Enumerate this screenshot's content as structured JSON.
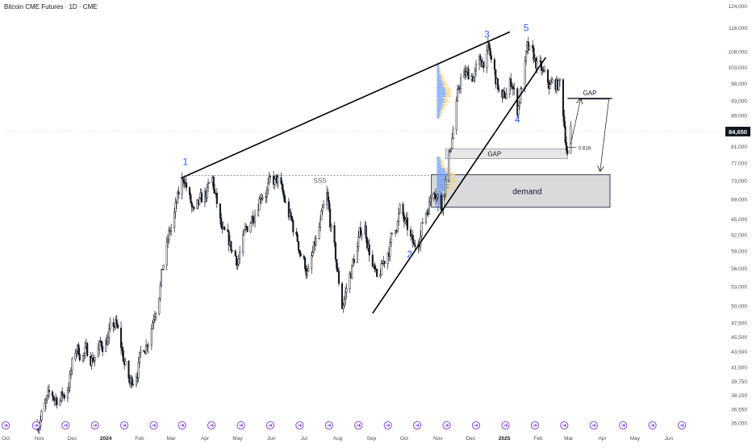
{
  "header": {
    "title": "Bitcoin CME Futures · 1D · CME"
  },
  "colors": {
    "candle": "#131722",
    "trend_line": "#000000",
    "wave_label": "#2962ff",
    "zone_fill": "#d9dadc",
    "zone_stroke": "#131722",
    "price_tag_bg": "#131722",
    "price_tag_text": "#ffffff",
    "event_icon": "#7e3ad6",
    "axis_text": "#4a4e58",
    "vp_blue": "#5b8ff0",
    "vp_yellow": "#f3d27a"
  },
  "chart_data": {
    "type": "candlestick",
    "y_scale": "log",
    "ylim": [
      34500,
      125500
    ],
    "x_domain": [
      "2023-10-01",
      "2024-06-30"
    ],
    "y_ticks": [
      124000,
      116000,
      108000,
      103000,
      98000,
      93000,
      89000,
      85000,
      81000,
      77000,
      73000,
      69000,
      65000,
      62000,
      59000,
      56000,
      53000,
      50000,
      47500,
      45500,
      43500,
      41500,
      39750,
      38150,
      36550,
      35050
    ],
    "x_ticks": [
      {
        "label": "Oct",
        "date": "2023-10-01"
      },
      {
        "label": "Nov",
        "date": "2023-11-01"
      },
      {
        "label": "Dec",
        "date": "2023-12-01"
      },
      {
        "label": "2024",
        "date": "2024-01-01"
      },
      {
        "label": "Feb",
        "date": "2024-02-01"
      },
      {
        "label": "Mar",
        "date": "2024-03-01"
      },
      {
        "label": "Apr",
        "date": "2024-04-01"
      },
      {
        "label": "May",
        "date": "2024-05-01"
      },
      {
        "label": "Jun",
        "date": "2024-06-01"
      },
      {
        "label": "Jul",
        "date": "2024-07-01"
      },
      {
        "label": "Aug",
        "date": "2024-08-01"
      },
      {
        "label": "Sep",
        "date": "2024-09-01"
      },
      {
        "label": "Oct",
        "date": "2024-10-01"
      },
      {
        "label": "Nov",
        "date": "2024-11-01"
      },
      {
        "label": "Dec",
        "date": "2024-12-01"
      },
      {
        "label": "2025",
        "date": "2025-01-01"
      },
      {
        "label": "Feb",
        "date": "2025-02-01"
      },
      {
        "label": "Mar",
        "date": "2025-03-01"
      },
      {
        "label": "Apr",
        "date": "2025-04-01"
      },
      {
        "label": "May",
        "date": "2025-05-01"
      },
      {
        "label": "Jun",
        "date": "2025-06-01"
      }
    ],
    "price_path": [
      [
        "2023-10-28",
        34800
      ],
      [
        "2023-11-10",
        37500
      ],
      [
        "2023-11-25",
        38200
      ],
      [
        "2023-12-05",
        43800
      ],
      [
        "2023-12-20",
        42800
      ],
      [
        "2024-01-10",
        47000
      ],
      [
        "2024-01-23",
        39200
      ],
      [
        "2024-02-10",
        46000
      ],
      [
        "2024-02-28",
        61500
      ],
      [
        "2024-03-13",
        74000
      ],
      [
        "2024-03-22",
        65000
      ],
      [
        "2024-04-08",
        72500
      ],
      [
        "2024-04-17",
        61500
      ],
      [
        "2024-05-01",
        57500
      ],
      [
        "2024-05-22",
        71000
      ],
      [
        "2024-06-07",
        72500
      ],
      [
        "2024-07-05",
        55000
      ],
      [
        "2024-07-22",
        68500
      ],
      [
        "2024-08-05",
        50000
      ],
      [
        "2024-08-25",
        64500
      ],
      [
        "2024-09-06",
        53000
      ],
      [
        "2024-09-27",
        66500
      ],
      [
        "2024-10-10",
        59000
      ],
      [
        "2024-10-29",
        72500
      ],
      [
        "2024-11-04",
        67500
      ],
      [
        "2024-11-22",
        99500
      ],
      [
        "2024-12-05",
        101000
      ],
      [
        "2024-12-17",
        108000
      ],
      [
        "2024-12-30",
        92000
      ],
      [
        "2025-01-08",
        99000
      ],
      [
        "2025-01-13",
        90500
      ],
      [
        "2025-01-22",
        107500
      ],
      [
        "2025-02-01",
        103000
      ],
      [
        "2025-02-10",
        97000
      ],
      [
        "2025-02-21",
        97500
      ],
      [
        "2025-02-28",
        79500
      ],
      [
        "2025-03-03",
        84650
      ]
    ],
    "volume_profiles": [
      {
        "date": "2024-10-31",
        "price_from": 88000,
        "price_to": 104000
      },
      {
        "date": "2024-10-31",
        "price_from": 66500,
        "price_to": 78500
      }
    ],
    "last_price": 84650,
    "last_price_label": "84,650",
    "trendlines": [
      {
        "name": "upper-wedge-line",
        "from": [
          "2024-03-10",
          73500
        ],
        "to": [
          "2025-01-06",
          114500
        ]
      },
      {
        "name": "lower-wedge-line",
        "from": [
          "2024-09-02",
          48800
        ],
        "to": [
          "2025-02-08",
          106000
        ]
      }
    ],
    "wave_labels": [
      {
        "text": "1",
        "date": "2024-03-14",
        "price": 76500
      },
      {
        "text": "2",
        "date": "2024-10-06",
        "price": 57800
      },
      {
        "text": "3",
        "date": "2024-12-16",
        "price": 112500
      },
      {
        "text": "4",
        "date": "2025-01-13",
        "price": 87000
      },
      {
        "text": "5",
        "date": "2025-01-21",
        "price": 114800
      }
    ],
    "sss_line": {
      "text": "SSS",
      "price": 74100,
      "from": "2024-03-14",
      "to": "2024-10-25"
    },
    "demand_zone": {
      "text": "demand",
      "price_top": 74300,
      "price_bottom": 67300,
      "from": "2024-10-26",
      "to": "2025-04-08"
    },
    "lower_gap": {
      "text": "GAP",
      "price_top": 80300,
      "price_bottom": 78000,
      "from": "2024-11-08",
      "to": "2025-02-28"
    },
    "upper_gap": {
      "text": "GAP",
      "price": 93600,
      "from": "2025-02-28",
      "to": "2025-04-10"
    },
    "fib_marker": {
      "text": "0.618",
      "price": 80700,
      "from": "2025-02-28",
      "to": "2025-03-08"
    },
    "projection_paths": [
      {
        "name": "projection-to-lower-gap",
        "points": [
          [
            "2025-03-03",
            81500
          ],
          [
            "2025-03-12",
            93400
          ]
        ]
      },
      {
        "name": "projection-to-upper-gap",
        "points": [
          [
            "2025-03-10",
            93400
          ],
          [
            "2025-04-07",
            93400
          ],
          [
            "2025-03-30",
            75200
          ]
        ]
      }
    ],
    "event_icon_dates": [
      "2023-10-01",
      "2023-10-29",
      "2023-11-25",
      "2023-12-22",
      "2024-01-18",
      "2024-02-14",
      "2024-03-11",
      "2024-04-07",
      "2024-05-04",
      "2024-05-31",
      "2024-06-27",
      "2024-07-24",
      "2024-08-20",
      "2024-09-16",
      "2024-10-13",
      "2024-11-09",
      "2024-12-06",
      "2025-01-02",
      "2025-01-29",
      "2025-02-25",
      "2025-03-24",
      "2025-04-20",
      "2025-05-17",
      "2025-06-13"
    ]
  }
}
